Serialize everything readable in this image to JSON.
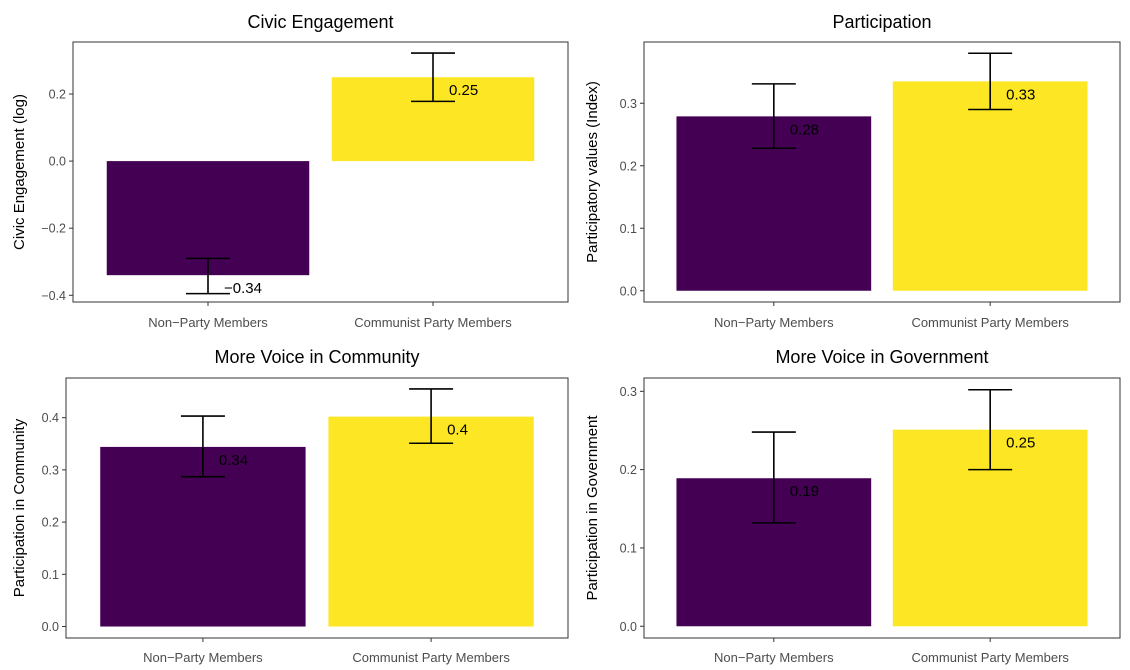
{
  "chart_data": [
    {
      "type": "bar",
      "title": "Civic Engagement",
      "ylabel": "Civic Engagement (log)",
      "xlabel": "",
      "categories": [
        "Non−Party Members",
        "Communist Party Members"
      ],
      "values": [
        -0.34,
        0.25
      ],
      "labels": [
        "−0.34",
        "0.25"
      ],
      "error_low": [
        -0.395,
        0.178
      ],
      "error_high": [
        -0.29,
        0.322
      ],
      "ylim": [
        -0.42,
        0.355
      ],
      "yticks": [
        -0.4,
        -0.2,
        0.0,
        0.2
      ],
      "ytick_labels": [
        "−0.4",
        "−0.2",
        "0.0",
        "0.2"
      ],
      "colors": [
        "#440154",
        "#FDE725"
      ],
      "grid": false,
      "legend": "none"
    },
    {
      "type": "bar",
      "title": "Participation",
      "ylabel": "Participatory values (Index)",
      "xlabel": "",
      "categories": [
        "Non−Party Members",
        "Communist Party Members"
      ],
      "values": [
        0.279,
        0.335
      ],
      "labels": [
        "0.28",
        "0.33"
      ],
      "error_low": [
        0.228,
        0.29
      ],
      "error_high": [
        0.331,
        0.38
      ],
      "ylim": [
        -0.018,
        0.398
      ],
      "yticks": [
        0.0,
        0.1,
        0.2,
        0.3
      ],
      "ytick_labels": [
        "0.0",
        "0.1",
        "0.2",
        "0.3"
      ],
      "colors": [
        "#440154",
        "#FDE725"
      ],
      "grid": false,
      "legend": "none"
    },
    {
      "type": "bar",
      "title": "More Voice in Community",
      "ylabel": "Participation in Community",
      "xlabel": "",
      "categories": [
        "Non−Party Members",
        "Communist Party Members"
      ],
      "values": [
        0.344,
        0.402
      ],
      "labels": [
        "0.34",
        "0.4"
      ],
      "error_low": [
        0.287,
        0.351
      ],
      "error_high": [
        0.403,
        0.455
      ],
      "ylim": [
        -0.022,
        0.476
      ],
      "yticks": [
        0.0,
        0.1,
        0.2,
        0.3,
        0.4
      ],
      "ytick_labels": [
        "0.0",
        "0.1",
        "0.2",
        "0.3",
        "0.4"
      ],
      "colors": [
        "#440154",
        "#FDE725"
      ],
      "grid": false,
      "legend": "none"
    },
    {
      "type": "bar",
      "title": "More Voice in Government",
      "ylabel": "Participation in Government",
      "xlabel": "",
      "categories": [
        "Non−Party Members",
        "Communist Party Members"
      ],
      "values": [
        0.189,
        0.251
      ],
      "labels": [
        "0.19",
        "0.25"
      ],
      "error_low": [
        0.132,
        0.2
      ],
      "error_high": [
        0.248,
        0.302
      ],
      "ylim": [
        -0.015,
        0.317
      ],
      "yticks": [
        0.0,
        0.1,
        0.2,
        0.3
      ],
      "ytick_labels": [
        "0.0",
        "0.1",
        "0.2",
        "0.3"
      ],
      "colors": [
        "#440154",
        "#FDE725"
      ],
      "grid": false,
      "legend": "none"
    }
  ]
}
